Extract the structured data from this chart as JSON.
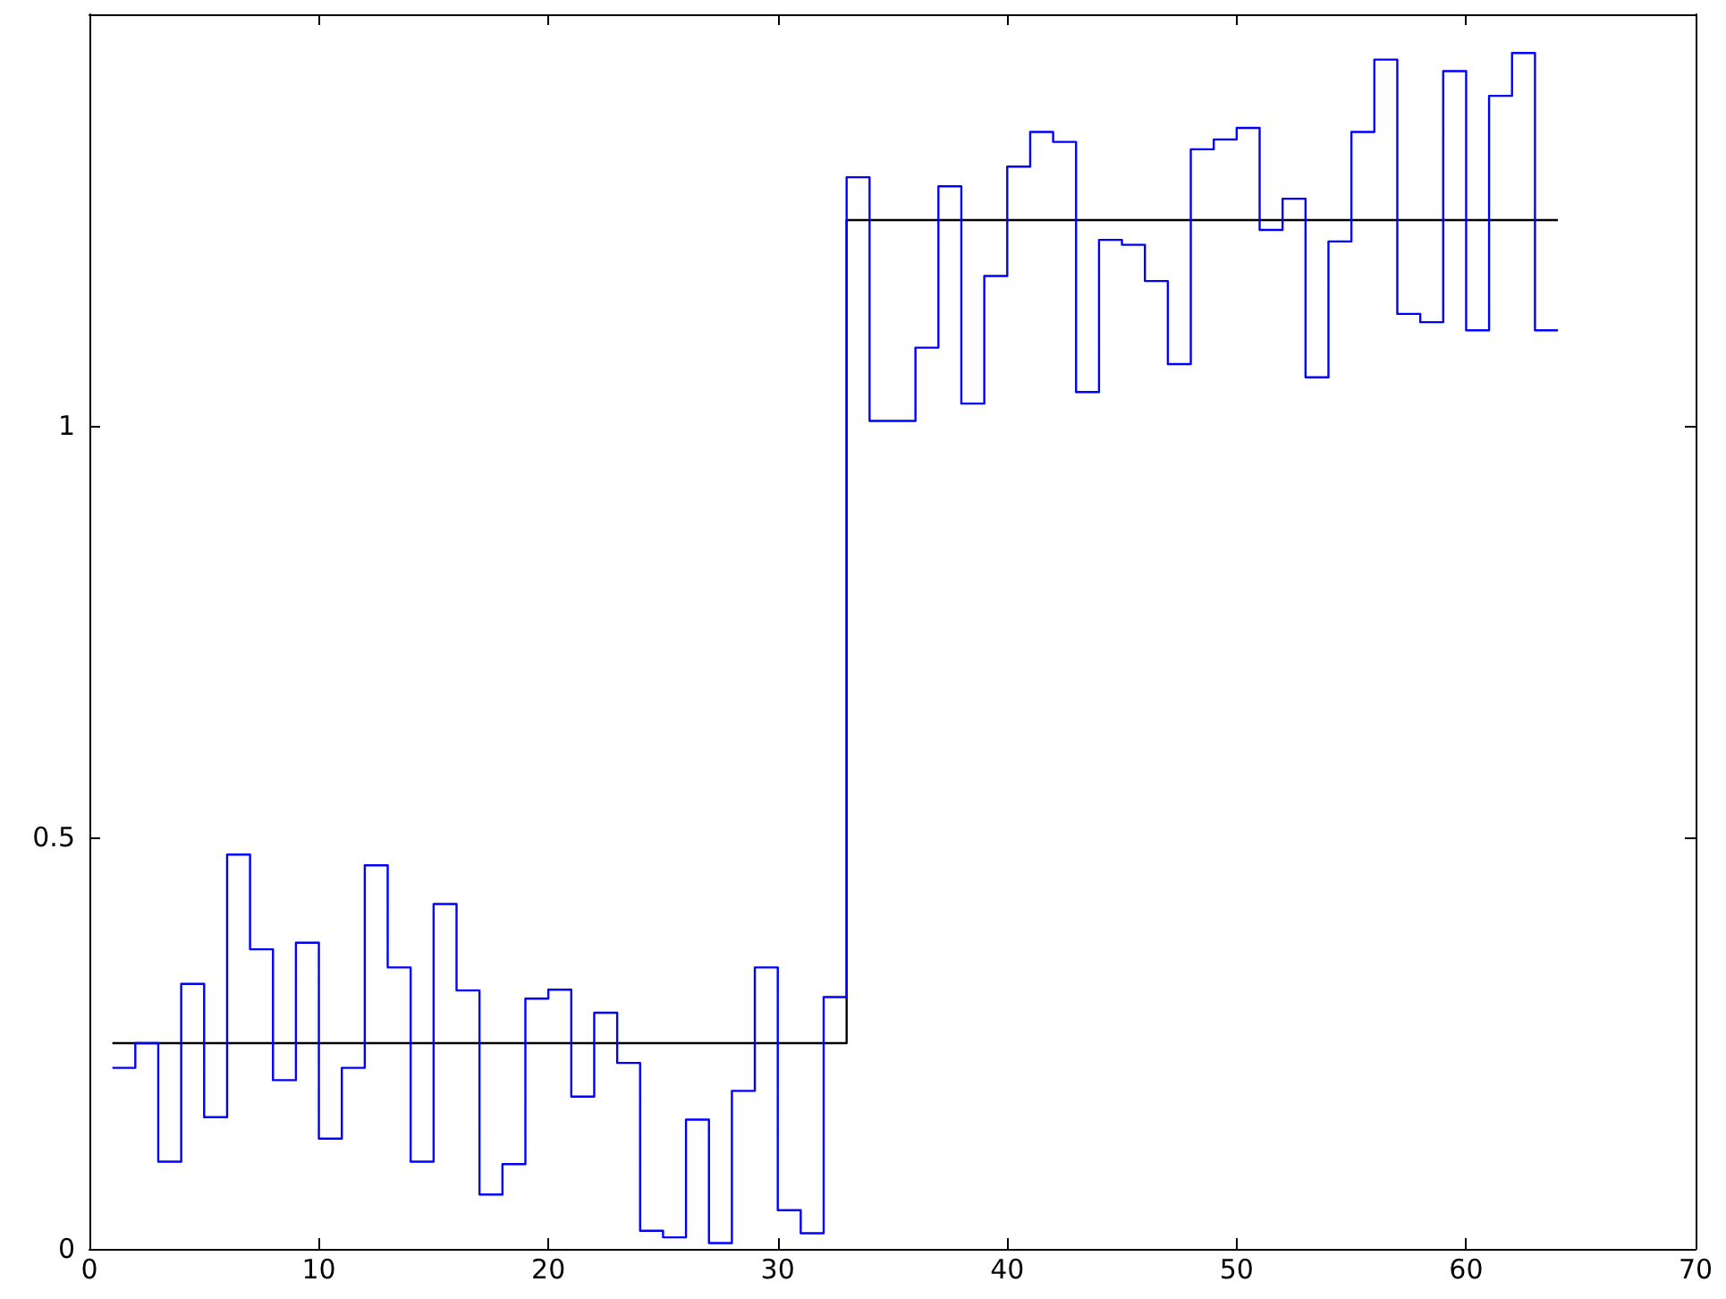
{
  "chart_data": {
    "type": "step",
    "x": [
      1,
      2,
      3,
      4,
      5,
      6,
      7,
      8,
      9,
      10,
      11,
      12,
      13,
      14,
      15,
      16,
      17,
      18,
      19,
      20,
      21,
      22,
      23,
      24,
      25,
      26,
      27,
      28,
      29,
      30,
      31,
      32,
      33,
      34,
      35,
      36,
      37,
      38,
      39,
      40,
      41,
      42,
      43,
      44,
      45,
      46,
      47,
      48,
      49,
      50,
      51,
      52,
      53,
      54,
      55,
      56,
      57,
      58,
      59,
      60,
      61,
      62,
      63,
      64
    ],
    "series": [
      {
        "color": "#0000ff",
        "values": [
          0.22,
          0.25,
          0.106,
          0.322,
          0.16,
          0.479,
          0.364,
          0.205,
          0.372,
          0.134,
          0.22,
          0.466,
          0.342,
          0.106,
          0.419,
          0.314,
          0.066,
          0.103,
          0.304,
          0.315,
          0.185,
          0.287,
          0.226,
          0.022,
          0.014,
          0.157,
          0.007,
          0.192,
          0.342,
          0.047,
          0.019,
          0.306,
          1.302,
          1.006,
          1.006,
          1.095,
          1.291,
          1.027,
          1.182,
          1.315,
          1.357,
          1.345,
          1.041,
          1.226,
          1.22,
          1.176,
          1.075,
          1.336,
          1.348,
          1.362,
          1.238,
          1.276,
          1.059,
          1.224,
          1.357,
          1.445,
          1.136,
          1.126,
          1.431,
          1.116,
          1.401,
          1.453,
          1.116,
          1.116
        ]
      },
      {
        "color": "#000000",
        "x": [
          1,
          33,
          64
        ],
        "values": [
          0.25,
          1.25,
          1.25
        ]
      }
    ],
    "xlim": [
      0,
      70
    ],
    "xticks": [
      0,
      10,
      20,
      30,
      40,
      50,
      60,
      70
    ],
    "ylim": [
      0,
      1.5
    ],
    "yticks": [
      0,
      0.5,
      1,
      {
        "value": 1.5,
        "label": null
      }
    ],
    "grid": false,
    "marker": "none",
    "line_style": "solid"
  }
}
